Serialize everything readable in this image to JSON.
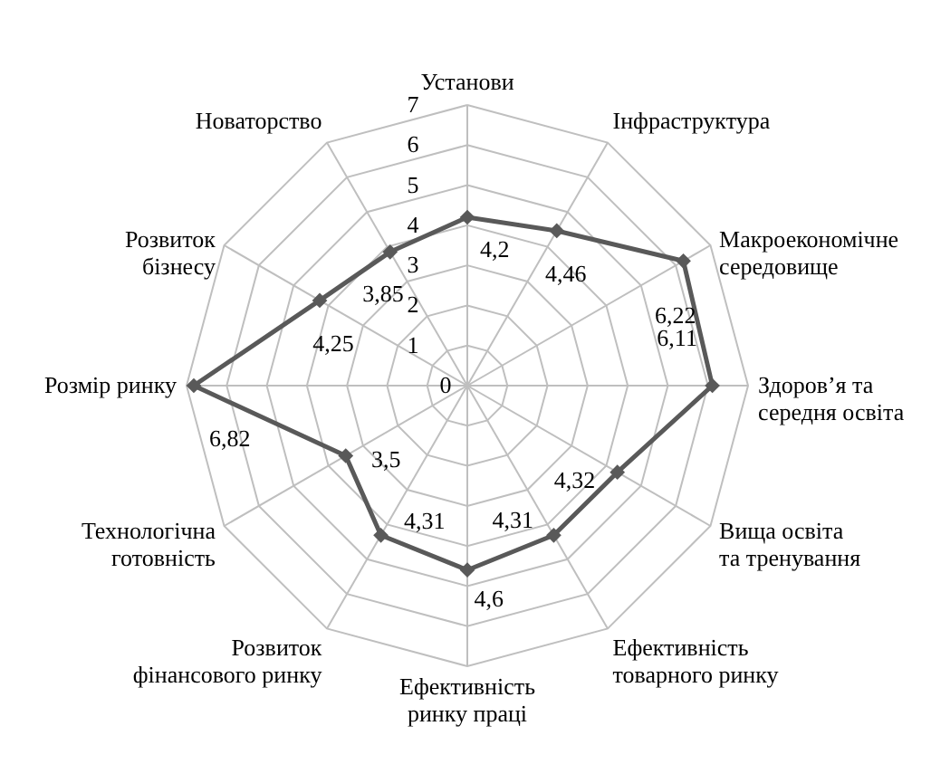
{
  "chart_data": {
    "type": "radar",
    "categories": [
      "Установи",
      "Інфраструктура",
      "Макроекономічне середовище",
      "Здоров’я та середня освіта",
      "Вища освіта та тренування",
      "Ефективність товарного ринку",
      "Ефективність ринку праці",
      "Розвиток фінансового ринку",
      "Технологічна готовність",
      "Розмір ринку",
      "Розвиток бізнесу",
      "Новаторство"
    ],
    "series": [
      {
        "color": "#595959",
        "values": [
          4.2,
          4.46,
          6.22,
          6.11,
          4.32,
          4.31,
          4.6,
          4.31,
          3.5,
          6.82,
          4.25,
          3.85
        ],
        "value_labels": [
          "4,2",
          "4,46",
          "6,22",
          "6,11",
          "4,32",
          "4,31",
          "4,6",
          "4,31",
          "3,5",
          "6,82",
          "4,25",
          "3,85"
        ]
      }
    ],
    "ylim": [
      0,
      7
    ],
    "yticks": [
      0,
      1,
      2,
      3,
      4,
      5,
      6,
      7
    ],
    "grid": true,
    "marker": "diamond",
    "line_style": "solid"
  }
}
